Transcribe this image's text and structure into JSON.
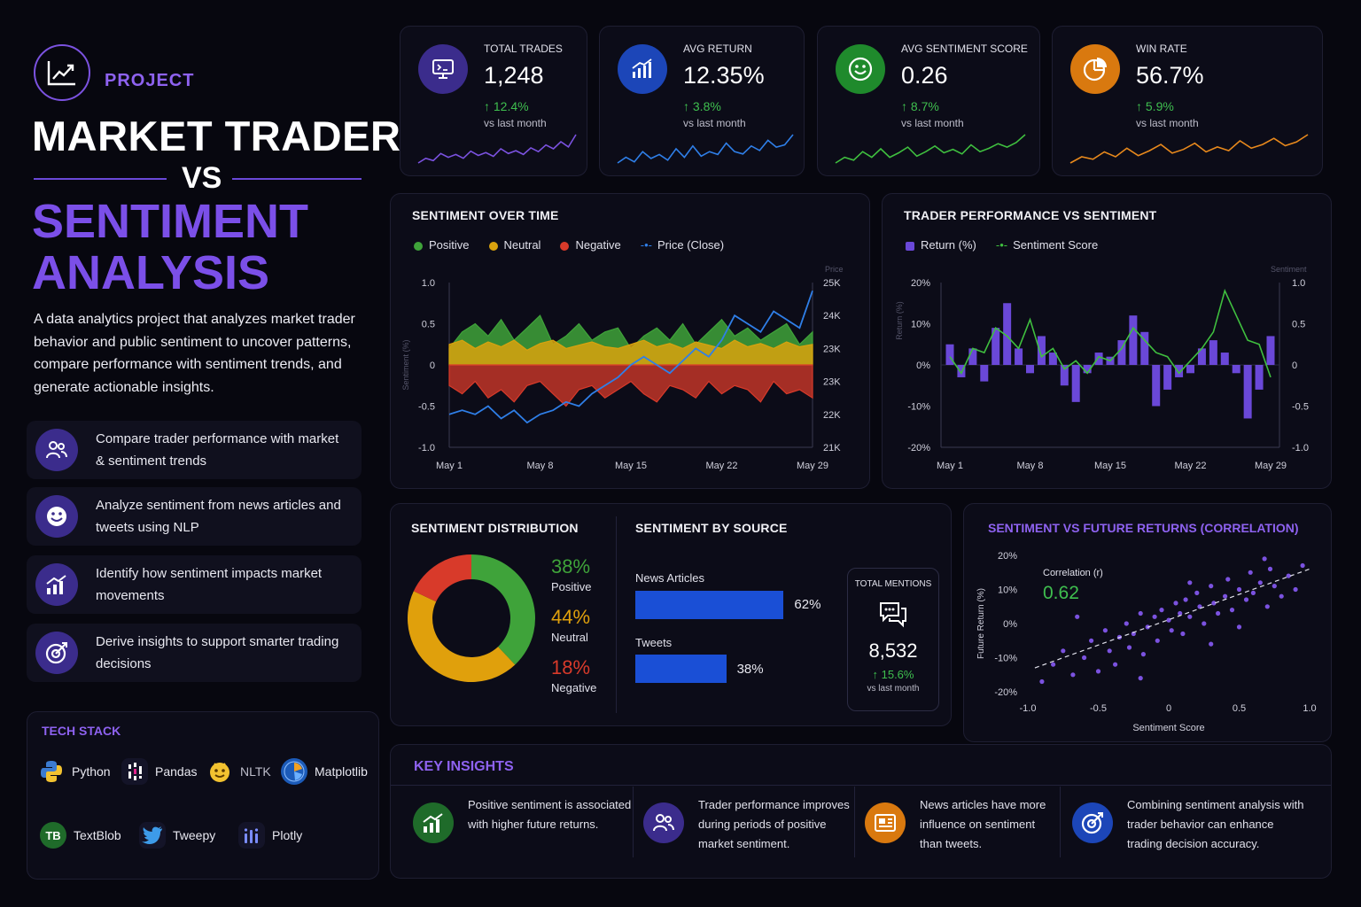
{
  "header": {
    "tag": "PROJECT",
    "title_line1": "MARKET TRADER",
    "title_vs": "VS",
    "title_line2": "SENTIMENT",
    "title_line3": "ANALYSIS",
    "description": "A data analytics project that analyzes market trader behavior and public sentiment to uncover patterns, compare performance with sentiment trends, and generate actionable insights.",
    "logo_icon": "trend-chart-icon"
  },
  "features": [
    {
      "label": "Compare trader performance with market & sentiment trends",
      "icon": "users-icon"
    },
    {
      "label": "Analyze sentiment from news articles and tweets using NLP",
      "icon": "smile-icon"
    },
    {
      "label": "Identify how sentiment impacts market movements",
      "icon": "bar-growth-icon"
    },
    {
      "label": "Derive insights to support smarter trading decisions",
      "icon": "target-icon"
    }
  ],
  "tech_stack": {
    "title": "TECH STACK",
    "items": [
      {
        "label": "Python",
        "icon": "python-icon"
      },
      {
        "label": "Pandas",
        "icon": "pandas-icon"
      },
      {
        "label": "NLTK",
        "icon": "nltk-icon"
      },
      {
        "label": "Matplotlib",
        "icon": "matplotlib-icon"
      },
      {
        "label": "TextBlob",
        "icon": "textblob-icon",
        "badge": "TB"
      },
      {
        "label": "Tweepy",
        "icon": "twitter-bird-icon"
      },
      {
        "label": "Plotly",
        "icon": "plotly-icon"
      }
    ]
  },
  "kpis": [
    {
      "label": "TOTAL TRADES",
      "value": "1,248",
      "change": "↑ 12.4%",
      "sub": "vs last month",
      "color": "#7b52e0",
      "bg": "#3b2c8c",
      "icon": "monitor-icon",
      "spark": [
        3,
        4,
        3.5,
        5,
        4.2,
        4.8,
        4,
        5.5,
        4.6,
        5.2,
        4.4,
        6,
        5,
        5.6,
        4.8,
        6.2,
        5.4,
        6.8,
        6,
        7.5,
        6.4,
        9
      ]
    },
    {
      "label": "AVG RETURN",
      "value": "12.35%",
      "change": "↑ 3.8%",
      "sub": "vs last month",
      "color": "#2f7fe8",
      "bg": "#1c46b8",
      "icon": "bar-chart-icon",
      "spark": [
        4,
        5,
        4.2,
        6,
        4.8,
        5.5,
        4.5,
        6.5,
        5,
        7,
        5.2,
        6,
        5.5,
        7.5,
        6,
        5.6,
        7,
        6.2,
        8,
        6.8,
        7.2,
        9
      ]
    },
    {
      "label": "AVG SENTIMENT SCORE",
      "value": "0.26",
      "change": "↑ 8.7%",
      "sub": "vs last month",
      "color": "#3fbf3f",
      "bg": "#1f8a2c",
      "icon": "smile-icon",
      "spark": [
        4,
        5,
        4.5,
        6,
        5,
        6.5,
        5,
        5.8,
        6.8,
        5.2,
        6,
        7,
        5.8,
        6.4,
        5.6,
        7.2,
        6,
        6.6,
        7.4,
        6.8,
        7.6,
        9
      ]
    },
    {
      "label": "WIN RATE",
      "value": "56.7%",
      "change": "↑ 5.9%",
      "sub": "vs last month",
      "color": "#e8891c",
      "bg": "#d9790f",
      "icon": "pie-chart-icon",
      "spark": [
        4,
        5,
        4.6,
        5.8,
        5,
        6.4,
        5.2,
        6,
        7,
        5.6,
        6.2,
        7.2,
        5.8,
        6.6,
        6,
        7.6,
        6.4,
        7,
        8,
        6.8,
        7.4,
        8.6
      ]
    }
  ],
  "sentiment_over_time": {
    "title": "SENTIMENT OVER TIME",
    "legend": [
      {
        "label": "Positive",
        "color": "#3fa33a"
      },
      {
        "label": "Neutral",
        "color": "#d9a20e"
      },
      {
        "label": "Negative",
        "color": "#d83a2a"
      },
      {
        "label": "Price (Close)",
        "color": "#2f7fe8"
      }
    ],
    "y_left_label": "Sentiment (%)",
    "y_right_label": "Price",
    "y_left_ticks": [
      "1.0",
      "0.5",
      "0",
      "-0.5",
      "-1.0"
    ],
    "y_right_ticks": [
      "25K",
      "24K",
      "23K",
      "23K",
      "22K",
      "21K"
    ],
    "x_ticks": [
      "May 1",
      "May 8",
      "May 15",
      "May 22",
      "May 29"
    ]
  },
  "trader_perf": {
    "title": "TRADER PERFORMANCE VS SENTIMENT",
    "legend": [
      {
        "label": "Return (%)",
        "color": "#6a48d8"
      },
      {
        "label": "Sentiment Score",
        "color": "#3fbf3f"
      }
    ],
    "y_left_label": "Return (%)",
    "y_right_label": "Sentiment",
    "y_left_ticks": [
      "20%",
      "10%",
      "0%",
      "-10%",
      "-20%"
    ],
    "y_right_ticks": [
      "1.0",
      "0.5",
      "0",
      "-0.5",
      "-1.0"
    ],
    "x_ticks": [
      "May 1",
      "May 8",
      "May 15",
      "May 22",
      "May 29"
    ]
  },
  "distribution": {
    "title": "SENTIMENT DISTRIBUTION",
    "slices": [
      {
        "label": "Positive",
        "value": 38,
        "display": "38%",
        "color": "#3fa33a"
      },
      {
        "label": "Neutral",
        "value": 44,
        "display": "44%",
        "color": "#e0a00c"
      },
      {
        "label": "Negative",
        "value": 18,
        "display": "18%",
        "color": "#d83a2a"
      }
    ]
  },
  "by_source": {
    "title": "SENTIMENT BY SOURCE",
    "items": [
      {
        "label": "News Articles",
        "value": 62,
        "display": "62%"
      },
      {
        "label": "Tweets",
        "value": 38,
        "display": "38%"
      }
    ],
    "bar_color": "#1a4fd6",
    "mentions": {
      "label": "TOTAL MENTIONS",
      "value": "8,532",
      "change": "↑ 15.6%",
      "sub": "vs last month",
      "icon": "chat-bubbles-icon"
    }
  },
  "correlation": {
    "title": "SENTIMENT VS FUTURE RETURNS (CORRELATION)",
    "annotation_label": "Correlation (r)",
    "annotation_value": "0.62",
    "xlabel": "Sentiment Score",
    "ylabel": "Future Return (%)",
    "x_ticks": [
      "-1.0",
      "-0.5",
      "0",
      "0.5",
      "1.0"
    ],
    "y_ticks": [
      "20%",
      "10%",
      "0%",
      "-10%",
      "-20%"
    ]
  },
  "insights": {
    "title": "KEY INSIGHTS",
    "items": [
      {
        "text": "Positive sentiment is associated with higher future returns.",
        "icon": "growth-icon",
        "bg": "#1f6b2a"
      },
      {
        "text": "Trader performance improves during periods of positive market sentiment.",
        "icon": "users-icon",
        "bg": "#3b2c8c"
      },
      {
        "text": "News articles have more influence on sentiment than tweets.",
        "icon": "newspaper-icon",
        "bg": "#d9790f"
      },
      {
        "text": "Combining sentiment analysis with trader behavior can enhance trading decision accuracy.",
        "icon": "target-icon",
        "bg": "#1c46b8"
      }
    ]
  },
  "chart_data": [
    {
      "type": "area",
      "title": "SENTIMENT OVER TIME",
      "x": [
        "May 1",
        "May 2",
        "May 3",
        "May 4",
        "May 5",
        "May 6",
        "May 7",
        "May 8",
        "May 9",
        "May 10",
        "May 11",
        "May 12",
        "May 13",
        "May 14",
        "May 15",
        "May 16",
        "May 17",
        "May 18",
        "May 19",
        "May 20",
        "May 21",
        "May 22",
        "May 23",
        "May 24",
        "May 25",
        "May 26",
        "May 27",
        "May 28",
        "May 29"
      ],
      "ylim": [
        -1.0,
        1.0
      ],
      "series": [
        {
          "name": "Positive",
          "values": [
            0.2,
            0.4,
            0.5,
            0.35,
            0.55,
            0.3,
            0.45,
            0.6,
            0.25,
            0.35,
            0.5,
            0.3,
            0.4,
            0.45,
            0.2,
            0.35,
            0.45,
            0.3,
            0.5,
            0.25,
            0.4,
            0.55,
            0.35,
            0.45,
            0.3,
            0.4,
            0.5,
            0.25,
            0.4
          ]
        },
        {
          "name": "Neutral",
          "values": [
            0.25,
            0.3,
            0.2,
            0.28,
            0.22,
            0.3,
            0.18,
            0.26,
            0.3,
            0.2,
            0.24,
            0.28,
            0.22,
            0.2,
            0.25,
            0.3,
            0.22,
            0.26,
            0.2,
            0.28,
            0.24,
            0.2,
            0.3,
            0.22,
            0.26,
            0.2,
            0.28,
            0.22,
            0.25
          ]
        },
        {
          "name": "Negative",
          "values": [
            -0.25,
            -0.35,
            -0.2,
            -0.4,
            -0.3,
            -0.45,
            -0.25,
            -0.2,
            -0.35,
            -0.5,
            -0.3,
            -0.25,
            -0.4,
            -0.3,
            -0.2,
            -0.35,
            -0.45,
            -0.25,
            -0.3,
            -0.4,
            -0.2,
            -0.35,
            -0.25,
            -0.3,
            -0.45,
            -0.2,
            -0.35,
            -0.3,
            -0.4
          ]
        },
        {
          "name": "Price (Close)",
          "axis": "right",
          "values": [
            21.8,
            21.9,
            21.8,
            22.0,
            21.7,
            21.9,
            21.6,
            21.8,
            21.9,
            22.1,
            22.0,
            22.3,
            22.5,
            22.7,
            23.0,
            23.2,
            23.0,
            22.8,
            23.1,
            23.4,
            23.2,
            23.6,
            24.2,
            24.0,
            23.8,
            24.3,
            24.1,
            23.9,
            24.8
          ]
        }
      ],
      "y_right_range": [
        21,
        25
      ]
    },
    {
      "type": "bar",
      "title": "TRADER PERFORMANCE VS SENTIMENT",
      "x": [
        "May 1",
        "May 2",
        "May 3",
        "May 4",
        "May 5",
        "May 6",
        "May 7",
        "May 8",
        "May 9",
        "May 10",
        "May 11",
        "May 12",
        "May 13",
        "May 14",
        "May 15",
        "May 16",
        "May 17",
        "May 18",
        "May 19",
        "May 20",
        "May 21",
        "May 22",
        "May 23",
        "May 24",
        "May 25",
        "May 26",
        "May 27",
        "May 28",
        "May 29"
      ],
      "ylim": [
        -20,
        20
      ],
      "series": [
        {
          "name": "Return (%)",
          "values": [
            5,
            -3,
            4,
            -4,
            9,
            15,
            4,
            -2,
            7,
            3,
            -5,
            -9,
            -2,
            3,
            2,
            6,
            12,
            8,
            -10,
            -6,
            -3,
            -2,
            4,
            6,
            3,
            -2,
            -13,
            -6,
            7
          ]
        },
        {
          "name": "Sentiment Score",
          "axis": "right",
          "range": [
            -1,
            1
          ],
          "values": [
            0.1,
            -0.1,
            0.2,
            0.15,
            0.45,
            0.35,
            0.2,
            0.55,
            0.1,
            0.2,
            -0.05,
            0.05,
            -0.1,
            0.1,
            0.05,
            0.2,
            0.45,
            0.3,
            0.15,
            0.1,
            -0.1,
            0.05,
            0.2,
            0.4,
            0.9,
            0.6,
            0.3,
            0.25,
            -0.15
          ]
        }
      ]
    },
    {
      "type": "pie",
      "title": "SENTIMENT DISTRIBUTION",
      "categories": [
        "Positive",
        "Neutral",
        "Negative"
      ],
      "values": [
        38,
        44,
        18
      ]
    },
    {
      "type": "bar",
      "title": "SENTIMENT BY SOURCE",
      "categories": [
        "News Articles",
        "Tweets"
      ],
      "values": [
        62,
        38
      ]
    },
    {
      "type": "scatter",
      "title": "SENTIMENT VS FUTURE RETURNS (CORRELATION)",
      "xlabel": "Sentiment Score",
      "ylabel": "Future Return (%)",
      "xlim": [
        -1.0,
        1.0
      ],
      "ylim": [
        -20,
        20
      ],
      "points": [
        [
          -0.9,
          -17
        ],
        [
          -0.82,
          -12
        ],
        [
          -0.75,
          -8
        ],
        [
          -0.68,
          -15
        ],
        [
          -0.6,
          -10
        ],
        [
          -0.55,
          -5
        ],
        [
          -0.5,
          -14
        ],
        [
          -0.45,
          -2
        ],
        [
          -0.42,
          -8
        ],
        [
          -0.38,
          -12
        ],
        [
          -0.35,
          -4
        ],
        [
          -0.3,
          0
        ],
        [
          -0.28,
          -7
        ],
        [
          -0.25,
          -3
        ],
        [
          -0.2,
          3
        ],
        [
          -0.18,
          -9
        ],
        [
          -0.15,
          -1
        ],
        [
          -0.1,
          2
        ],
        [
          -0.08,
          -5
        ],
        [
          -0.05,
          4
        ],
        [
          0,
          1
        ],
        [
          0.02,
          -2
        ],
        [
          0.05,
          6
        ],
        [
          0.08,
          3
        ],
        [
          0.1,
          -3
        ],
        [
          0.12,
          7
        ],
        [
          0.15,
          2
        ],
        [
          0.2,
          9
        ],
        [
          0.22,
          5
        ],
        [
          0.25,
          0
        ],
        [
          0.3,
          11
        ],
        [
          0.32,
          6
        ],
        [
          0.35,
          3
        ],
        [
          0.4,
          8
        ],
        [
          0.42,
          13
        ],
        [
          0.45,
          4
        ],
        [
          0.5,
          10
        ],
        [
          0.55,
          7
        ],
        [
          0.58,
          15
        ],
        [
          0.6,
          9
        ],
        [
          0.65,
          12
        ],
        [
          0.7,
          5
        ],
        [
          0.72,
          16
        ],
        [
          0.75,
          11
        ],
        [
          0.8,
          8
        ],
        [
          0.85,
          14
        ],
        [
          0.9,
          10
        ],
        [
          0.95,
          17
        ],
        [
          -0.65,
          2
        ],
        [
          0.15,
          12
        ],
        [
          0.5,
          -1
        ],
        [
          -0.2,
          -16
        ],
        [
          0.68,
          19
        ],
        [
          0.3,
          -6
        ]
      ],
      "trend": [
        [
          -0.95,
          -13
        ],
        [
          1.0,
          16
        ]
      ],
      "annotation": "Correlation (r) 0.62"
    }
  ]
}
